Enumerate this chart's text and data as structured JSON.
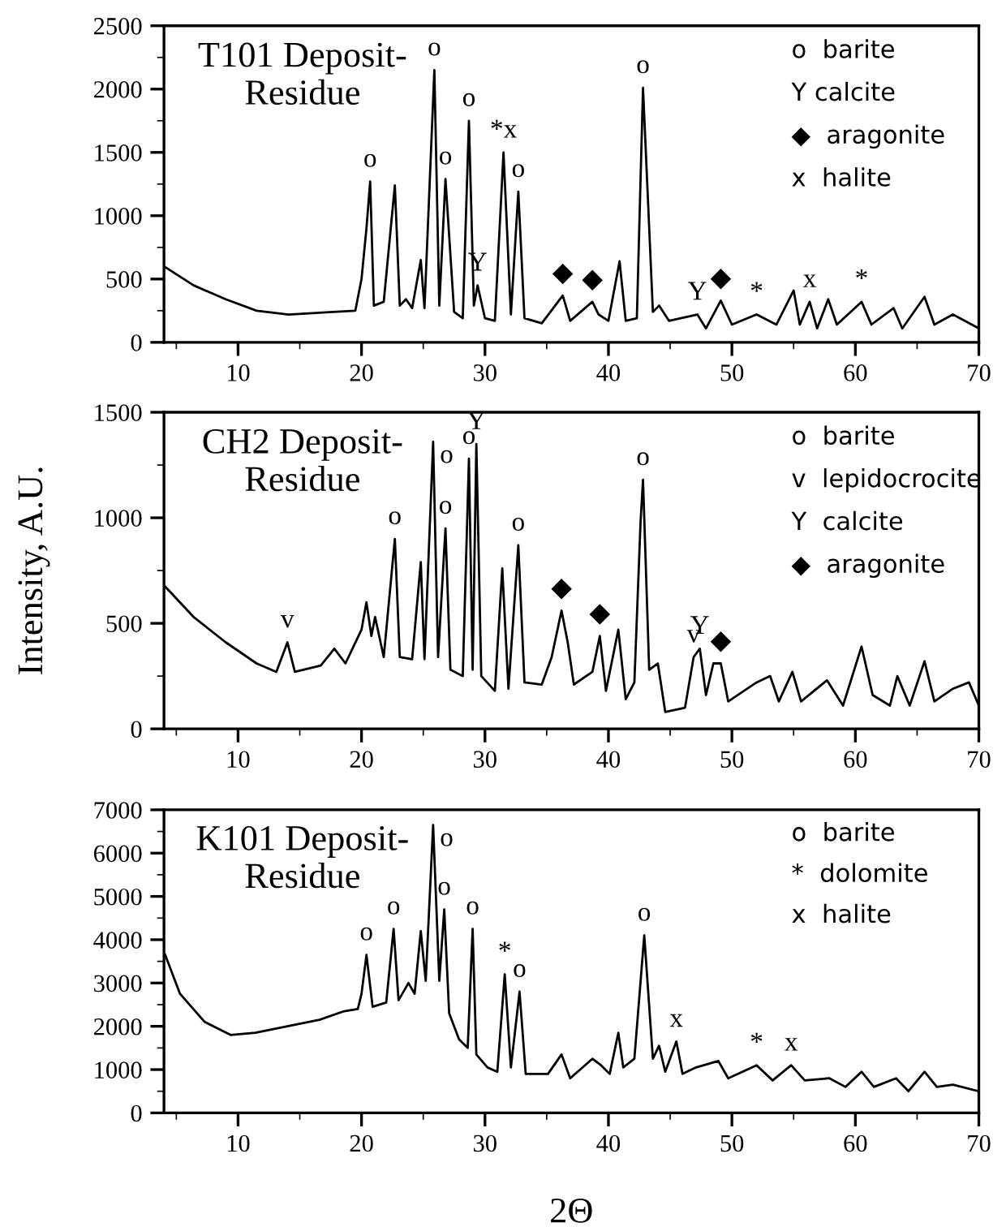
{
  "chart_data": [
    {
      "type": "line",
      "title": "T101 Deposit-\nResidue",
      "color": "#000000",
      "xlim": [
        4,
        70
      ],
      "xticks": [
        10,
        20,
        30,
        40,
        50,
        60,
        70
      ],
      "ylim": [
        0,
        2500
      ],
      "yticks": [
        0,
        500,
        1000,
        1500,
        2000,
        2500
      ],
      "x": [
        4,
        6.4,
        9,
        11.5,
        14.1,
        17.7,
        19.5,
        20,
        20.4,
        20.7,
        21,
        21.8,
        22.7,
        23.1,
        23.6,
        24.1,
        24.8,
        25.1,
        25.9,
        26.3,
        26.8,
        27.5,
        28.2,
        28.7,
        29.1,
        29.4,
        30,
        30.8,
        31.5,
        32.1,
        32.7,
        33.2,
        34.6,
        36.3,
        36.9,
        38.7,
        39.2,
        40,
        40.9,
        41.4,
        42.3,
        42.8,
        43.6,
        44.1,
        44.9,
        47.2,
        47.9,
        49.1,
        50,
        52,
        53.6,
        55,
        55.5,
        56.3,
        56.9,
        57.8,
        58.5,
        60.5,
        61.3,
        63.1,
        63.8,
        65.6,
        66.4,
        67.9,
        70
      ],
      "values": [
        600,
        450,
        340,
        250,
        220,
        240,
        250,
        500,
        900,
        1270,
        290,
        320,
        1240,
        290,
        340,
        270,
        650,
        270,
        2150,
        290,
        1290,
        240,
        190,
        1750,
        290,
        450,
        190,
        170,
        1500,
        220,
        1190,
        190,
        150,
        370,
        170,
        320,
        220,
        170,
        640,
        170,
        190,
        2010,
        240,
        290,
        170,
        220,
        110,
        330,
        140,
        220,
        140,
        410,
        140,
        320,
        110,
        340,
        140,
        320,
        140,
        270,
        110,
        360,
        140,
        220,
        110
      ],
      "annotations": [
        {
          "text": "o",
          "x": 20.7,
          "y": 1270
        },
        {
          "text": "o",
          "x": 25.9,
          "y": 2150
        },
        {
          "text": "o",
          "x": 26.8,
          "y": 1290
        },
        {
          "text": "o",
          "x": 28.7,
          "y": 1750
        },
        {
          "text": "*x",
          "x": 31.5,
          "y": 1500
        },
        {
          "text": "o",
          "x": 32.7,
          "y": 1190
        },
        {
          "text": "Y",
          "x": 29.4,
          "y": 450
        },
        {
          "text": "◆",
          "x": 36.3,
          "y": 370
        },
        {
          "text": "◆",
          "x": 38.7,
          "y": 320
        },
        {
          "text": "o",
          "x": 42.8,
          "y": 2010
        },
        {
          "text": "Y",
          "x": 47.2,
          "y": 220
        },
        {
          "text": "◆",
          "x": 49.1,
          "y": 330
        },
        {
          "text": "*",
          "x": 52,
          "y": 220
        },
        {
          "text": "x",
          "x": 56.3,
          "y": 320
        },
        {
          "text": "*",
          "x": 60.5,
          "y": 320
        },
        "o  barite",
        "Y calcite",
        "◆  aragonite",
        "x  halite"
      ]
    },
    {
      "type": "line",
      "title": "CH2 Deposit-\nResidue",
      "ylabel": "Intensity, A.U.",
      "color": "#000000",
      "xlim": [
        4,
        70
      ],
      "xticks": [
        10,
        20,
        30,
        40,
        50,
        60,
        70
      ],
      "ylim": [
        0,
        1500
      ],
      "yticks": [
        0,
        500,
        1000,
        1500
      ],
      "x": [
        4,
        6.4,
        9,
        11.5,
        13.1,
        14,
        14.6,
        16.7,
        17.8,
        18.7,
        20,
        20.4,
        20.8,
        21.1,
        21.8,
        22.7,
        23.1,
        24.1,
        24.8,
        25.1,
        25.8,
        26.2,
        26.8,
        27.2,
        28.2,
        28.7,
        29,
        29.3,
        29.7,
        30.8,
        31.4,
        31.9,
        32.7,
        33.2,
        34.6,
        35.4,
        36.2,
        36.7,
        37.2,
        38.7,
        39.3,
        39.8,
        40.8,
        41.4,
        42.1,
        42.6,
        42.8,
        43.3,
        44,
        44.6,
        46.2,
        46.9,
        47.4,
        47.9,
        48.5,
        49.1,
        49.7,
        52,
        53.1,
        53.8,
        54.9,
        55.6,
        57.7,
        59,
        60.5,
        61.4,
        62.8,
        63.4,
        64.4,
        65.6,
        66.4,
        67.9,
        69.2,
        70
      ],
      "values": [
        680,
        530,
        410,
        310,
        270,
        410,
        270,
        300,
        380,
        310,
        470,
        600,
        440,
        530,
        340,
        900,
        340,
        330,
        790,
        330,
        1360,
        340,
        950,
        280,
        250,
        1280,
        280,
        1350,
        250,
        180,
        760,
        190,
        870,
        220,
        210,
        340,
        560,
        410,
        210,
        270,
        440,
        180,
        470,
        140,
        220,
        980,
        1180,
        280,
        310,
        80,
        100,
        340,
        380,
        160,
        310,
        310,
        130,
        220,
        250,
        130,
        270,
        130,
        230,
        110,
        390,
        160,
        110,
        250,
        110,
        320,
        130,
        190,
        220,
        110
      ],
      "annotations": [
        {
          "text": "v",
          "x": 14,
          "y": 410
        },
        {
          "text": "o",
          "x": 22.7,
          "y": 900
        },
        {
          "text": "o",
          "x": 25.8,
          "y": 1360
        },
        {
          "text": "o",
          "x": 26.8,
          "y": 950
        },
        {
          "text": "o",
          "x": 28.7,
          "y": 1280
        },
        {
          "text": "Y",
          "x": 29.3,
          "y": 1350
        },
        {
          "text": "o",
          "x": 32.7,
          "y": 870
        },
        {
          "text": "◆",
          "x": 36.2,
          "y": 560
        },
        {
          "text": "◆",
          "x": 39.3,
          "y": 440
        },
        {
          "text": "o",
          "x": 42.8,
          "y": 1180
        },
        {
          "text": "v",
          "x": 46.9,
          "y": 340
        },
        {
          "text": "Y",
          "x": 47.4,
          "y": 380
        },
        {
          "text": "◆",
          "x": 49.1,
          "y": 310
        },
        "o  barite",
        "v  lepidocrocite",
        "Y  calcite",
        "◆  aragonite"
      ]
    },
    {
      "type": "line",
      "title": "K101 Deposit-\nResidue",
      "xlabel": "2Θ",
      "color": "#000000",
      "xlim": [
        4,
        70
      ],
      "xticks": [
        10,
        20,
        30,
        40,
        50,
        60,
        70
      ],
      "ylim": [
        0,
        7000
      ],
      "yticks": [
        0,
        1000,
        2000,
        3000,
        4000,
        5000,
        6000,
        7000
      ],
      "x": [
        4.1,
        5.3,
        7.3,
        9.4,
        11.4,
        14,
        16.6,
        18.6,
        19.7,
        20,
        20.4,
        20.9,
        22,
        22.6,
        23,
        23.8,
        24.3,
        24.8,
        25.2,
        25.8,
        26.3,
        26.7,
        27.1,
        27.9,
        28.6,
        29,
        29.3,
        30.2,
        31,
        31.6,
        32.1,
        32.8,
        33.3,
        35.1,
        36.2,
        36.9,
        38.7,
        39.4,
        40.1,
        40.8,
        41.2,
        42.1,
        42.9,
        43.6,
        44.1,
        44.6,
        45.5,
        46,
        47.1,
        48.9,
        49.7,
        52,
        53.3,
        54.8,
        55.9,
        57.9,
        59.2,
        60.5,
        61.5,
        63.3,
        64.3,
        65.6,
        66.6,
        67.9,
        70
      ],
      "values": [
        3650,
        2750,
        2100,
        1800,
        1850,
        2000,
        2150,
        2350,
        2400,
        2750,
        3650,
        2450,
        2550,
        4250,
        2600,
        3000,
        2750,
        4200,
        3050,
        6650,
        3050,
        4700,
        2300,
        1700,
        1500,
        4250,
        1350,
        1050,
        950,
        3200,
        1050,
        2800,
        900,
        900,
        1350,
        800,
        1250,
        1100,
        900,
        1850,
        1050,
        1250,
        4100,
        1250,
        1550,
        950,
        1650,
        900,
        1050,
        1200,
        800,
        1100,
        750,
        1100,
        750,
        800,
        600,
        950,
        600,
        800,
        500,
        950,
        600,
        650,
        500
      ],
      "annotations": [
        {
          "text": "o",
          "x": 20.4,
          "y": 3650
        },
        {
          "text": "o",
          "x": 22.6,
          "y": 4250
        },
        {
          "text": "o",
          "x": 25.8,
          "y": 6650
        },
        {
          "text": "o",
          "x": 26.7,
          "y": 4700
        },
        {
          "text": "o",
          "x": 29,
          "y": 4250
        },
        {
          "text": "*",
          "x": 31.6,
          "y": 3200
        },
        {
          "text": "o",
          "x": 32.8,
          "y": 2800
        },
        {
          "text": "o",
          "x": 42.9,
          "y": 4100
        },
        {
          "text": "x",
          "x": 45.5,
          "y": 1650
        },
        {
          "text": "*",
          "x": 52,
          "y": 1100
        },
        {
          "text": "x",
          "x": 54.8,
          "y": 1100
        },
        "o  barite",
        "*  dolomite",
        "x  halite"
      ]
    }
  ]
}
